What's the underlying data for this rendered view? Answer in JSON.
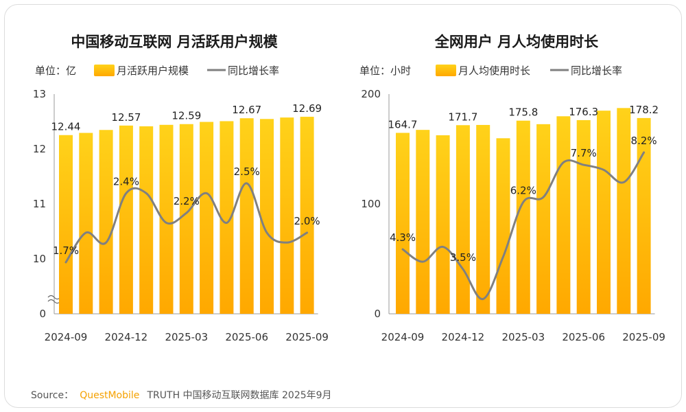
{
  "source": {
    "prefix": "Source：",
    "brand": "QuestMobile",
    "suffix": "TRUTH 中国移动互联网数据库 2025年9月"
  },
  "colors": {
    "bar_top": "#FFD21A",
    "bar_bottom": "#FFA800",
    "line": "#808080",
    "brand": "#F5A100"
  },
  "chart_data": [
    {
      "type": "bar",
      "title": "中国移动互联网 月活跃用户规模",
      "unit_label": "单位：亿",
      "bar_legend": "月活跃用户规模",
      "line_legend": "同比增长率",
      "categories": [
        "2024-09",
        "2024-10",
        "2024-11",
        "2024-12",
        "2025-01",
        "2025-02",
        "2025-03",
        "2025-04",
        "2025-05",
        "2025-06",
        "2025-07",
        "2025-08",
        "2025-09"
      ],
      "x_tick_labels": [
        "2024-09",
        "2024-12",
        "2025-03",
        "2025-06",
        "2025-09"
      ],
      "y_ticks": [
        "13",
        "12",
        "11",
        "10",
        "0"
      ],
      "y_range": [
        10,
        13
      ],
      "y_axis_break": true,
      "series": [
        {
          "name": "月活跃用户规模",
          "values": [
            12.44,
            12.47,
            12.51,
            12.57,
            12.56,
            12.58,
            12.59,
            12.62,
            12.63,
            12.67,
            12.66,
            12.68,
            12.69
          ]
        },
        {
          "name": "同比增长率",
          "values": [
            1.7,
            2.0,
            1.9,
            2.4,
            2.4,
            2.1,
            2.2,
            2.4,
            2.1,
            2.5,
            2.0,
            1.9,
            2.0
          ]
        }
      ],
      "value_labels": [
        {
          "i": 0,
          "text": "12.44"
        },
        {
          "i": 3,
          "text": "12.57"
        },
        {
          "i": 6,
          "text": "12.59"
        },
        {
          "i": 9,
          "text": "12.67"
        },
        {
          "i": 12,
          "text": "12.69"
        }
      ],
      "pct_labels": [
        {
          "i": 0,
          "text": "1.7%"
        },
        {
          "i": 3,
          "text": "2.4%"
        },
        {
          "i": 6,
          "text": "2.2%"
        },
        {
          "i": 9,
          "text": "2.5%"
        },
        {
          "i": 12,
          "text": "2.0%"
        }
      ]
    },
    {
      "type": "bar",
      "title": "全网用户 月人均使用时长",
      "unit_label": "单位：小时",
      "bar_legend": "月人均使用时长",
      "line_legend": "同比增长率",
      "categories": [
        "2024-09",
        "2024-10",
        "2024-11",
        "2024-12",
        "2025-01",
        "2025-02",
        "2025-03",
        "2025-04",
        "2025-05",
        "2025-06",
        "2025-07",
        "2025-08",
        "2025-09"
      ],
      "x_tick_labels": [
        "2024-09",
        "2024-12",
        "2025-03",
        "2025-06",
        "2025-09"
      ],
      "y_ticks": [
        "200",
        "100",
        "0"
      ],
      "y_range": [
        0,
        200
      ],
      "y_axis_break": false,
      "series": [
        {
          "name": "月人均使用时长",
          "values": [
            164.7,
            167.4,
            162.5,
            171.7,
            171.9,
            159.8,
            175.8,
            172.6,
            179.8,
            176.3,
            184.9,
            187.3,
            178.2
          ]
        },
        {
          "name": "同比增长率",
          "values": [
            4.3,
            3.8,
            4.4,
            3.5,
            2.3,
            4.0,
            6.2,
            6.4,
            7.8,
            7.7,
            7.5,
            7.0,
            8.2
          ]
        }
      ],
      "value_labels": [
        {
          "i": 0,
          "text": "164.7"
        },
        {
          "i": 3,
          "text": "171.7"
        },
        {
          "i": 6,
          "text": "175.8"
        },
        {
          "i": 9,
          "text": "176.3"
        },
        {
          "i": 12,
          "text": "178.2"
        }
      ],
      "pct_labels": [
        {
          "i": 0,
          "text": "4.3%"
        },
        {
          "i": 3,
          "text": "3.5%"
        },
        {
          "i": 6,
          "text": "6.2%"
        },
        {
          "i": 9,
          "text": "7.7%"
        },
        {
          "i": 12,
          "text": "8.2%"
        }
      ]
    }
  ]
}
